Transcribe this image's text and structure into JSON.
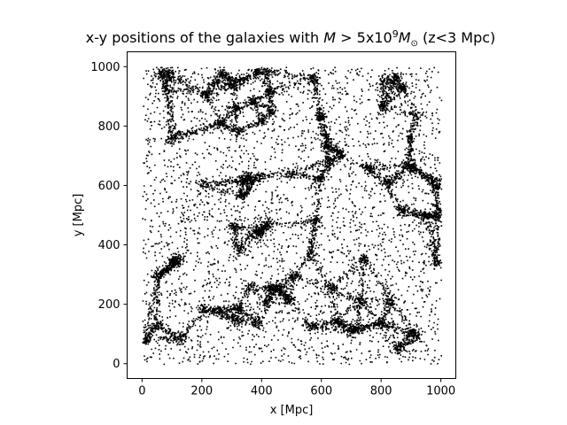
{
  "chart_data": {
    "type": "scatter",
    "title": {
      "prefix": "x-y positions of the galaxies with ",
      "math_M": "M",
      "gt": " > 5x10",
      "exp": "9",
      "math_M2": "M",
      "sub": "⊙",
      "suffix": " (z<3 Mpc)"
    },
    "xlabel": "x [Mpc]",
    "ylabel": "y [Mpc]",
    "xlim": [
      -50,
      1050
    ],
    "ylim": [
      -50,
      1050
    ],
    "xticks": [
      0,
      200,
      400,
      600,
      800,
      1000
    ],
    "yticks": [
      0,
      200,
      400,
      600,
      800,
      1000
    ],
    "grid": false,
    "marker_color": "#000000",
    "point_count_estimate": 9000,
    "distribution": "cosmic-web filamentary structure filling the 0–1000 Mpc box",
    "sample_points": [
      {
        "x": 400,
        "y": 460
      },
      {
        "x": 420,
        "y": 470
      },
      {
        "x": 380,
        "y": 450
      },
      {
        "x": 100,
        "y": 350
      },
      {
        "x": 110,
        "y": 340
      },
      {
        "x": 700,
        "y": 110
      },
      {
        "x": 720,
        "y": 120
      },
      {
        "x": 450,
        "y": 260
      },
      {
        "x": 460,
        "y": 250
      },
      {
        "x": 300,
        "y": 940
      },
      {
        "x": 320,
        "y": 950
      },
      {
        "x": 870,
        "y": 930
      },
      {
        "x": 60,
        "y": 980
      },
      {
        "x": 980,
        "y": 600
      },
      {
        "x": 980,
        "y": 620
      },
      {
        "x": 850,
        "y": 50
      },
      {
        "x": 130,
        "y": 90
      },
      {
        "x": 560,
        "y": 130
      }
    ]
  }
}
